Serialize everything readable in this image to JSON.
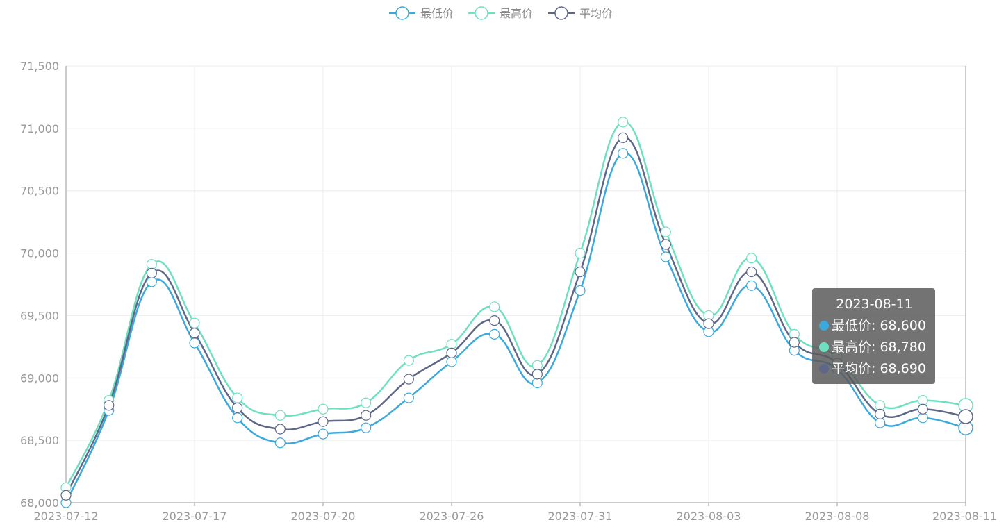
{
  "chart_data": {
    "type": "line",
    "smooth": true,
    "x": [
      "2023-07-12",
      "2023-07-13",
      "2023-07-15",
      "2023-07-17",
      "2023-07-18",
      "2023-07-19",
      "2023-07-20",
      "2023-07-21",
      "2023-07-24",
      "2023-07-26",
      "2023-07-27",
      "2023-07-28",
      "2023-07-31",
      "2023-08-01",
      "2023-08-02",
      "2023-08-03",
      "2023-08-04",
      "2023-08-07",
      "2023-08-08",
      "2023-08-09",
      "2023-08-10",
      "2023-08-11"
    ],
    "x_tick_labels": [
      "2023-07-12",
      "2023-07-17",
      "2023-07-20",
      "2023-07-26",
      "2023-07-31",
      "2023-08-03",
      "2023-08-08",
      "2023-08-11"
    ],
    "y_tick_labels": [
      "68,000",
      "68,500",
      "69,000",
      "69,500",
      "70,000",
      "70,500",
      "71,000",
      "71,500"
    ],
    "ylim": [
      68000,
      71500
    ],
    "grid": true,
    "legend_position": "top",
    "series": [
      {
        "name": "最低价",
        "color": "#3ca9dc",
        "values": [
          68000,
          68740,
          69770,
          69280,
          68680,
          68480,
          68550,
          68600,
          68840,
          69130,
          69350,
          68960,
          69700,
          70800,
          69970,
          69370,
          69740,
          69220,
          69070,
          68640,
          68680,
          68600
        ]
      },
      {
        "name": "最高价",
        "color": "#6ee0c0",
        "values": [
          68120,
          68820,
          69910,
          69440,
          68840,
          68700,
          68750,
          68800,
          69140,
          69270,
          69570,
          69100,
          70000,
          71050,
          70170,
          69500,
          69960,
          69350,
          69170,
          68780,
          68820,
          68780
        ]
      },
      {
        "name": "平均价",
        "color": "#5f6788",
        "values": [
          68060,
          68780,
          69840,
          69360,
          68760,
          68590,
          68650,
          68700,
          68990,
          69200,
          69460,
          69030,
          69850,
          70925,
          70070,
          69435,
          69850,
          69285,
          69120,
          68710,
          68750,
          68690
        ]
      }
    ]
  },
  "tooltip": {
    "date": "2023-08-11",
    "rows": [
      {
        "text": "最低价: 68,600",
        "color": "#3ca9dc"
      },
      {
        "text": "最高价: 68,780",
        "color": "#6ee0c0"
      },
      {
        "text": "平均价: 68,690",
        "color": "#5f6788"
      }
    ]
  }
}
